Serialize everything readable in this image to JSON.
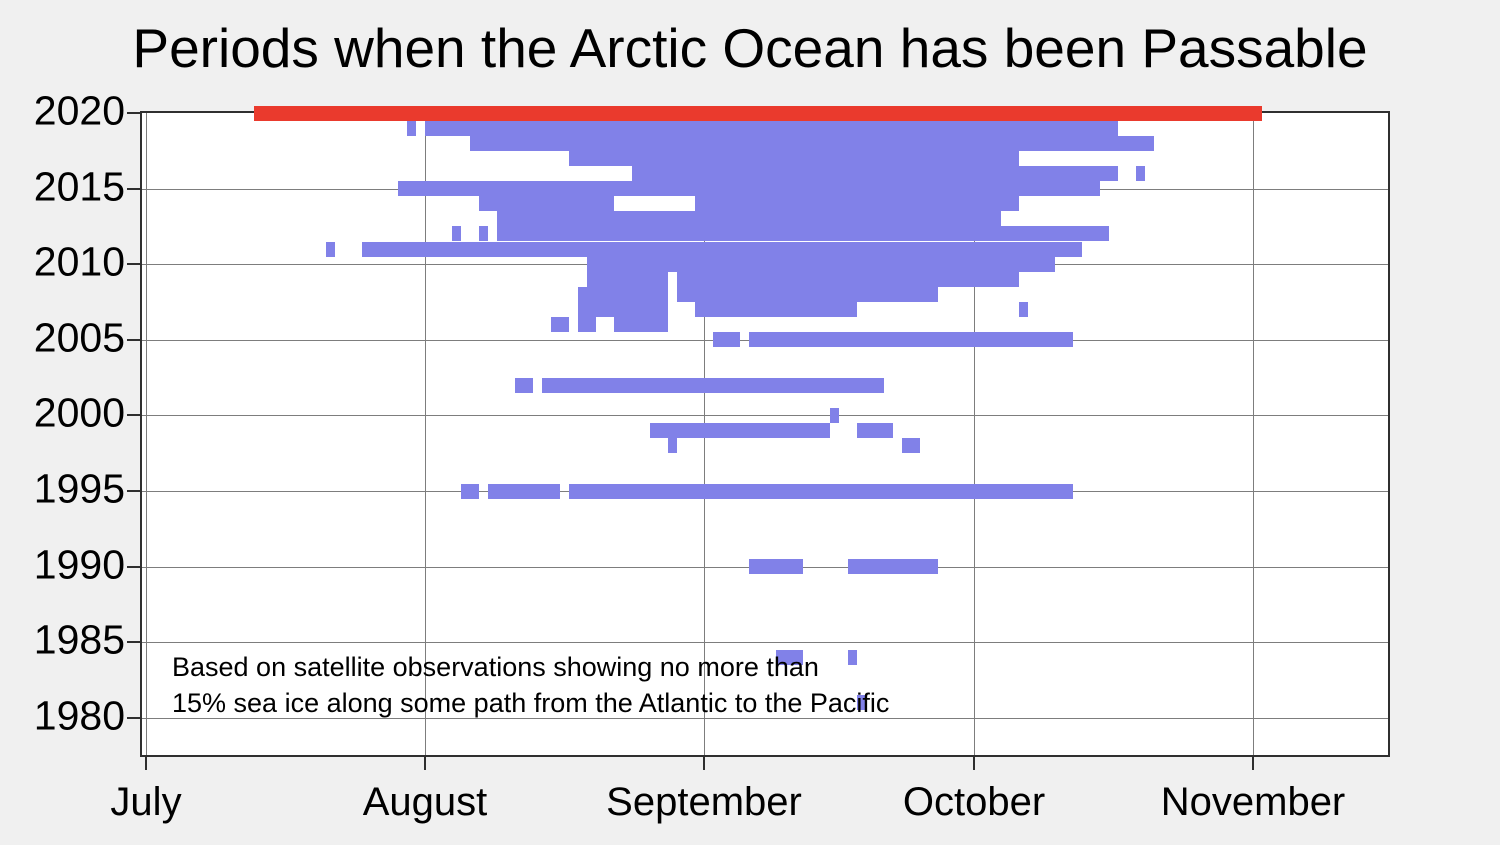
{
  "title": "Periods when the Arctic Ocean has been Passable",
  "annotation": {
    "line1": "Based on satellite observations showing no more than",
    "line2": "15% sea ice along some path from the Atlantic to the Pacific"
  },
  "colors": {
    "passable_blue": "#8181e8",
    "current_year_red": "#ea3a2d",
    "background": "#f0f0f0",
    "plot_background": "#ffffff",
    "gridline": "#7d7d7d",
    "axis": "#2f2f2f",
    "text": "#000000"
  },
  "chart_data": {
    "type": "timeline-gantt",
    "title": "Periods when the Arctic Ocean has been Passable",
    "xlabel": "",
    "ylabel": "",
    "x_tick_labels": [
      "July",
      "August",
      "September",
      "October",
      "November"
    ],
    "y_tick_labels": [
      2020,
      2015,
      2010,
      2005,
      2000,
      1995,
      1990,
      1985,
      1980
    ],
    "x_range": [
      "Jul 1",
      "Nov 16"
    ],
    "y_range": [
      1979,
      2021
    ],
    "grid": true,
    "legend_position": "none",
    "series": [
      {
        "year": 2020,
        "highlight": true,
        "segments": [
          [
            "Jul 13",
            "Nov 1"
          ]
        ]
      },
      {
        "year": 2019,
        "highlight": false,
        "segments": [
          [
            "Jul 30",
            "Jul 30"
          ],
          [
            "Aug 1",
            "Oct 16"
          ]
        ]
      },
      {
        "year": 2018,
        "highlight": false,
        "segments": [
          [
            "Aug 6",
            "Oct 20"
          ]
        ]
      },
      {
        "year": 2017,
        "highlight": false,
        "segments": [
          [
            "Aug 17",
            "Oct 5"
          ]
        ]
      },
      {
        "year": 2016,
        "highlight": false,
        "segments": [
          [
            "Aug 24",
            "Oct 16"
          ],
          [
            "Oct 19",
            "Oct 19"
          ]
        ]
      },
      {
        "year": 2015,
        "highlight": false,
        "segments": [
          [
            "Jul 29",
            "Oct 14"
          ]
        ]
      },
      {
        "year": 2014,
        "highlight": false,
        "segments": [
          [
            "Aug 7",
            "Aug 21"
          ],
          [
            "Aug 31",
            "Oct 5"
          ]
        ]
      },
      {
        "year": 2013,
        "highlight": false,
        "segments": [
          [
            "Aug 9",
            "Oct 3"
          ]
        ]
      },
      {
        "year": 2012,
        "highlight": false,
        "segments": [
          [
            "Aug 4",
            "Aug 4"
          ],
          [
            "Aug 7",
            "Aug 7"
          ],
          [
            "Aug 9",
            "Oct 15"
          ]
        ]
      },
      {
        "year": 2011,
        "highlight": false,
        "segments": [
          [
            "Jul 21",
            "Jul 21"
          ],
          [
            "Jul 25",
            "Oct 12"
          ]
        ]
      },
      {
        "year": 2010,
        "highlight": false,
        "segments": [
          [
            "Aug 19",
            "Oct 9"
          ]
        ]
      },
      {
        "year": 2009,
        "highlight": false,
        "segments": [
          [
            "Aug 19",
            "Aug 27"
          ],
          [
            "Aug 29",
            "Oct 5"
          ]
        ]
      },
      {
        "year": 2008,
        "highlight": false,
        "segments": [
          [
            "Aug 18",
            "Aug 27"
          ],
          [
            "Aug 29",
            "Sep 26"
          ]
        ]
      },
      {
        "year": 2007,
        "highlight": false,
        "segments": [
          [
            "Aug 18",
            "Aug 27"
          ],
          [
            "Aug 31",
            "Sep 17"
          ],
          [
            "Oct 6",
            "Oct 6"
          ]
        ]
      },
      {
        "year": 2006,
        "highlight": false,
        "segments": [
          [
            "Aug 15",
            "Aug 16"
          ],
          [
            "Aug 18",
            "Aug 19"
          ],
          [
            "Aug 22",
            "Aug 27"
          ]
        ]
      },
      {
        "year": 2005,
        "highlight": false,
        "segments": [
          [
            "Sep 2",
            "Sep 4"
          ],
          [
            "Sep 6",
            "Oct 11"
          ]
        ]
      },
      {
        "year": 2002,
        "highlight": false,
        "segments": [
          [
            "Aug 11",
            "Aug 12"
          ],
          [
            "Aug 14",
            "Sep 20"
          ]
        ]
      },
      {
        "year": 2000,
        "highlight": false,
        "segments": [
          [
            "Sep 15",
            "Sep 15"
          ]
        ]
      },
      {
        "year": 1999,
        "highlight": false,
        "segments": [
          [
            "Aug 26",
            "Sep 14"
          ],
          [
            "Sep 18",
            "Sep 21"
          ]
        ]
      },
      {
        "year": 1998,
        "highlight": false,
        "segments": [
          [
            "Aug 28",
            "Aug 28"
          ],
          [
            "Sep 23",
            "Sep 24"
          ]
        ]
      },
      {
        "year": 1995,
        "highlight": false,
        "segments": [
          [
            "Aug 5",
            "Aug 6"
          ],
          [
            "Aug 8",
            "Aug 15"
          ],
          [
            "Aug 17",
            "Oct 11"
          ]
        ]
      },
      {
        "year": 1990,
        "highlight": false,
        "segments": [
          [
            "Sep 6",
            "Sep 11"
          ],
          [
            "Sep 17",
            "Sep 26"
          ]
        ]
      },
      {
        "year": 1984,
        "highlight": false,
        "segments": [
          [
            "Sep 9",
            "Sep 11"
          ],
          [
            "Sep 17",
            "Sep 17"
          ]
        ]
      },
      {
        "year": 1981,
        "highlight": false,
        "segments": [
          [
            "Sep 18",
            "Sep 18"
          ]
        ]
      }
    ]
  }
}
